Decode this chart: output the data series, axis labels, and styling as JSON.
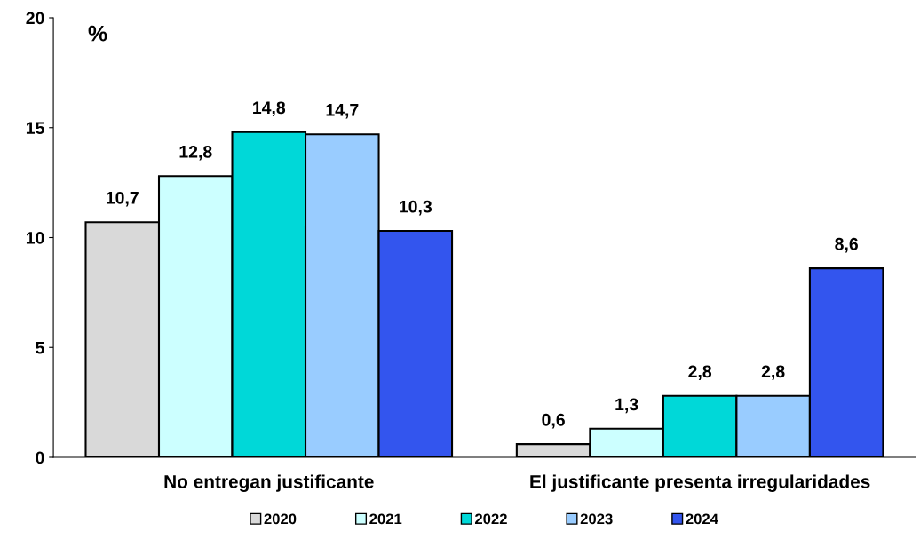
{
  "chart_data": {
    "type": "bar",
    "ylabel": "%",
    "categories": [
      "No entregan justificante",
      "El justificante presenta irregularidades"
    ],
    "series": [
      {
        "name": "2020",
        "color": "#d9d9d9",
        "values": [
          10.7,
          0.6
        ],
        "value_labels": [
          "10,7",
          "0,6"
        ]
      },
      {
        "name": "2021",
        "color": "#ccffff",
        "values": [
          12.8,
          1.3
        ],
        "value_labels": [
          "12,8",
          "1,3"
        ]
      },
      {
        "name": "2022",
        "color": "#00d8d8",
        "values": [
          14.8,
          2.8
        ],
        "value_labels": [
          "14,8",
          "2,8"
        ]
      },
      {
        "name": "2023",
        "color": "#99ccff",
        "values": [
          14.7,
          2.8
        ],
        "value_labels": [
          "14,7",
          "2,8"
        ]
      },
      {
        "name": "2024",
        "color": "#3355ee",
        "values": [
          10.3,
          8.6
        ],
        "value_labels": [
          "10,3",
          "8,6"
        ]
      }
    ],
    "ylim": [
      0,
      20
    ],
    "yticks": [
      0,
      5,
      10,
      15,
      20
    ],
    "grid": false,
    "legend": "bottom"
  }
}
